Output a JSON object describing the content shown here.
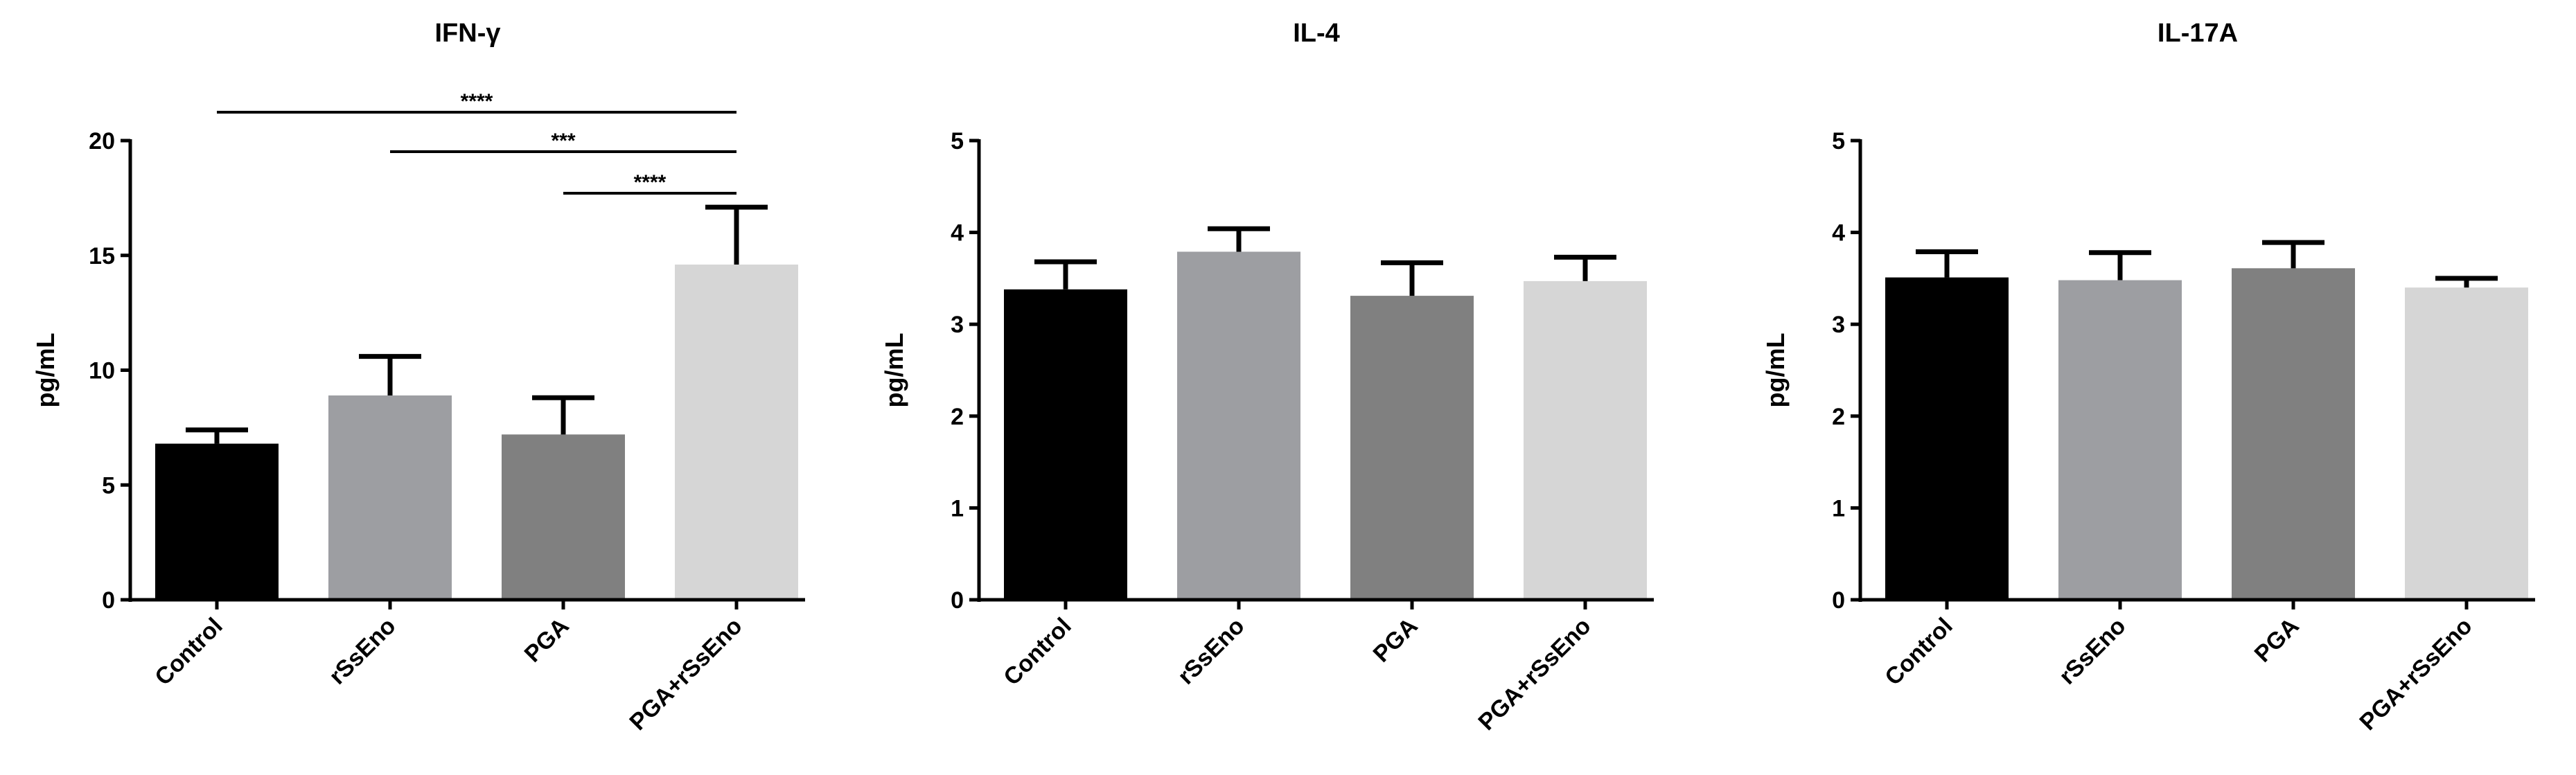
{
  "chart_data": [
    {
      "type": "bar",
      "title": "IFN-γ",
      "ylabel": "pg/mL",
      "xlabel": "",
      "ylim": [
        0,
        20
      ],
      "yticks": [
        0,
        5,
        10,
        15,
        20
      ],
      "categories": [
        "Control",
        "rSsEno",
        "PGA",
        "PGA+rSsEno"
      ],
      "values": [
        6.8,
        8.9,
        7.2,
        14.6
      ],
      "errors": [
        0.6,
        1.7,
        1.6,
        2.5
      ],
      "colors": [
        "#000000",
        "#9d9ea2",
        "#808080",
        "#d6d6d6"
      ],
      "significance": [
        {
          "from": 0,
          "to": 3,
          "label": "****"
        },
        {
          "from": 1,
          "to": 3,
          "label": "***"
        },
        {
          "from": 2,
          "to": 3,
          "label": "****"
        }
      ]
    },
    {
      "type": "bar",
      "title": "IL-4",
      "ylabel": "pg/mL",
      "xlabel": "",
      "ylim": [
        0,
        5
      ],
      "yticks": [
        0,
        1,
        2,
        3,
        4,
        5
      ],
      "categories": [
        "Control",
        "rSsEno",
        "PGA",
        "PGA+rSsEno"
      ],
      "values": [
        3.38,
        3.79,
        3.31,
        3.47
      ],
      "errors": [
        0.3,
        0.25,
        0.36,
        0.26
      ],
      "colors": [
        "#000000",
        "#9d9ea2",
        "#808080",
        "#d6d6d6"
      ],
      "significance": []
    },
    {
      "type": "bar",
      "title": "IL-17A",
      "ylabel": "pg/mL",
      "xlabel": "",
      "ylim": [
        0,
        5
      ],
      "yticks": [
        0,
        1,
        2,
        3,
        4,
        5
      ],
      "categories": [
        "Control",
        "rSsEno",
        "PGA",
        "PGA+rSsEno"
      ],
      "values": [
        3.51,
        3.48,
        3.61,
        3.4
      ],
      "errors": [
        0.28,
        0.3,
        0.28,
        0.1
      ],
      "colors": [
        "#000000",
        "#9d9ea2",
        "#808080",
        "#d6d6d6"
      ],
      "significance": []
    }
  ]
}
